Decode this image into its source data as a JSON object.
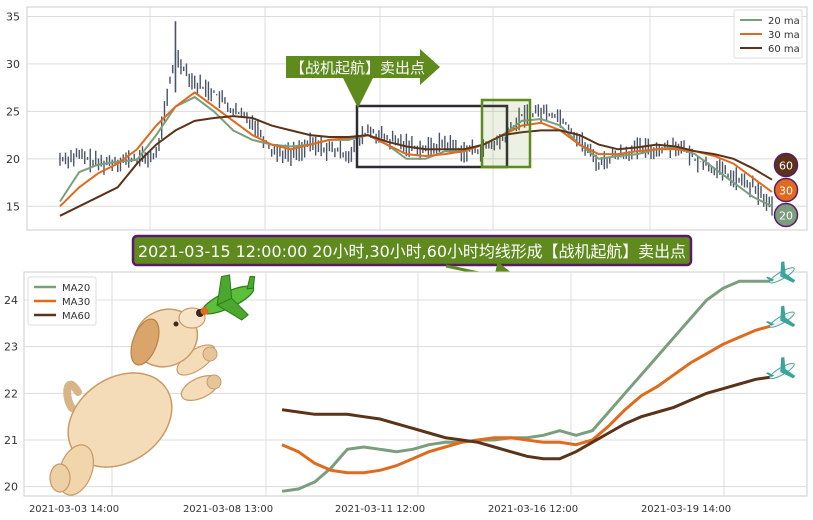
{
  "colors": {
    "ma20": "#7a9e7e",
    "ma30": "#e06a1e",
    "ma60": "#5a3318",
    "price": "#4a5468",
    "grid": "#dcdcdc",
    "box": "#2c2c34",
    "highlight": "#5f8a1e",
    "banner_fill": "#5f8a1e",
    "banner_border": "#5a1a6a"
  },
  "annotations": {
    "signal_label": "【战机起航】卖出点",
    "banner_text": "2021-03-15 12:00:00 20小时,30小时,60小时均线形成【战机起航】卖出点"
  },
  "badges": [
    "60",
    "30",
    "20"
  ],
  "decorations": {
    "dog_icon": "dog-chasing-plane-icon",
    "plane_icon": "airplane-icon"
  },
  "chart_data": [
    {
      "type": "line",
      "title": "",
      "xlabel": "",
      "ylabel": "",
      "ylim": [
        12.5,
        36
      ],
      "yticks": [
        15,
        20,
        25,
        30,
        35
      ],
      "grid": true,
      "legend_position": "top-right",
      "x": [
        0,
        10,
        20,
        30,
        40,
        50,
        60,
        70,
        80,
        90,
        100,
        110,
        120,
        130,
        140,
        150,
        160,
        170,
        180,
        190,
        200,
        210,
        220,
        230,
        240,
        250,
        260,
        270,
        280,
        290,
        300,
        310,
        320,
        330,
        340,
        350,
        360,
        370
      ],
      "price": [
        20,
        20.3,
        19.5,
        19.8,
        20,
        20.3,
        31,
        28,
        27,
        25,
        24,
        21,
        20.5,
        21.5,
        21,
        20.5,
        23,
        22,
        21.5,
        21,
        21.7,
        20.8,
        21,
        22,
        24.5,
        25,
        24.5,
        22,
        19.5,
        20.5,
        21,
        21,
        21.5,
        20,
        19,
        18,
        17,
        15
      ],
      "series": [
        {
          "name": "20 ma",
          "values": [
            15.5,
            18.6,
            19.4,
            19.7,
            19.9,
            22.5,
            25.5,
            26.5,
            25,
            23,
            22,
            21.5,
            21.3,
            21.5,
            22,
            22,
            22.5,
            21.5,
            20,
            20,
            20.8,
            20.8,
            21.5,
            22.5,
            24,
            24.2,
            23.5,
            21.5,
            20,
            20.3,
            20.5,
            21,
            21.2,
            20.5,
            19,
            17.5,
            16,
            15
          ]
        },
        {
          "name": "30 ma",
          "values": [
            15,
            17,
            18.5,
            19.5,
            21,
            23.5,
            25.5,
            27,
            25.5,
            24,
            22.5,
            21.5,
            21,
            21.5,
            22,
            22.2,
            22.5,
            21.5,
            20.5,
            20.3,
            20.5,
            20.8,
            21.5,
            22.5,
            23.5,
            23.8,
            23,
            21.5,
            20.5,
            20.5,
            20.8,
            21,
            21,
            20.8,
            20.3,
            19.5,
            18,
            16.5
          ]
        },
        {
          "name": "60 ma",
          "values": [
            14,
            15,
            16,
            17,
            19.5,
            21.5,
            23,
            24,
            24.3,
            24.5,
            24.3,
            23.5,
            23,
            22.5,
            22.3,
            22.3,
            22.5,
            21.8,
            21.3,
            21,
            21,
            21,
            21.5,
            22.5,
            22.8,
            23,
            23,
            22.5,
            21.5,
            21,
            21.2,
            21.5,
            21.3,
            20.8,
            20.5,
            20,
            19,
            17.8
          ]
        }
      ]
    },
    {
      "type": "line",
      "title": "",
      "xlabel": "",
      "ylabel": "",
      "ylim": [
        19.8,
        24.6
      ],
      "yticks": [
        20,
        21,
        22,
        23,
        24
      ],
      "grid": true,
      "legend_position": "top-left",
      "categories": [
        "2021-03-03 14:00",
        "2021-03-08 13:00",
        "2021-03-11 12:00",
        "2021-03-16 12:00",
        "2021-03-19 14:00"
      ],
      "x": [
        0,
        5,
        10,
        15,
        20,
        25,
        30,
        35,
        40,
        45,
        50,
        55,
        60,
        65,
        70,
        75,
        80,
        85,
        90,
        95,
        100,
        105,
        110,
        115,
        120,
        125,
        130,
        135,
        140,
        145,
        150
      ],
      "series": [
        {
          "name": "MA20",
          "values": [
            19.9,
            19.95,
            20.1,
            20.4,
            20.8,
            20.85,
            20.8,
            20.75,
            20.8,
            20.9,
            20.95,
            20.95,
            21.0,
            21.0,
            21.05,
            21.05,
            21.1,
            21.2,
            21.1,
            21.2,
            21.6,
            22.0,
            22.4,
            22.8,
            23.2,
            23.6,
            24.0,
            24.25,
            24.4,
            24.4,
            24.4
          ]
        },
        {
          "name": "MA30",
          "values": [
            20.9,
            20.75,
            20.5,
            20.35,
            20.3,
            20.3,
            20.35,
            20.45,
            20.6,
            20.75,
            20.85,
            20.95,
            21.0,
            21.05,
            21.05,
            21.0,
            20.95,
            20.95,
            20.9,
            21.0,
            21.3,
            21.65,
            21.95,
            22.15,
            22.4,
            22.65,
            22.85,
            23.05,
            23.2,
            23.35,
            23.45
          ]
        },
        {
          "name": "MA60",
          "values": [
            21.65,
            21.6,
            21.55,
            21.55,
            21.55,
            21.5,
            21.45,
            21.35,
            21.25,
            21.15,
            21.05,
            21.0,
            20.95,
            20.85,
            20.75,
            20.65,
            20.6,
            20.6,
            20.75,
            20.95,
            21.15,
            21.35,
            21.5,
            21.6,
            21.7,
            21.85,
            22.0,
            22.1,
            22.2,
            22.3,
            22.35
          ]
        }
      ]
    }
  ]
}
